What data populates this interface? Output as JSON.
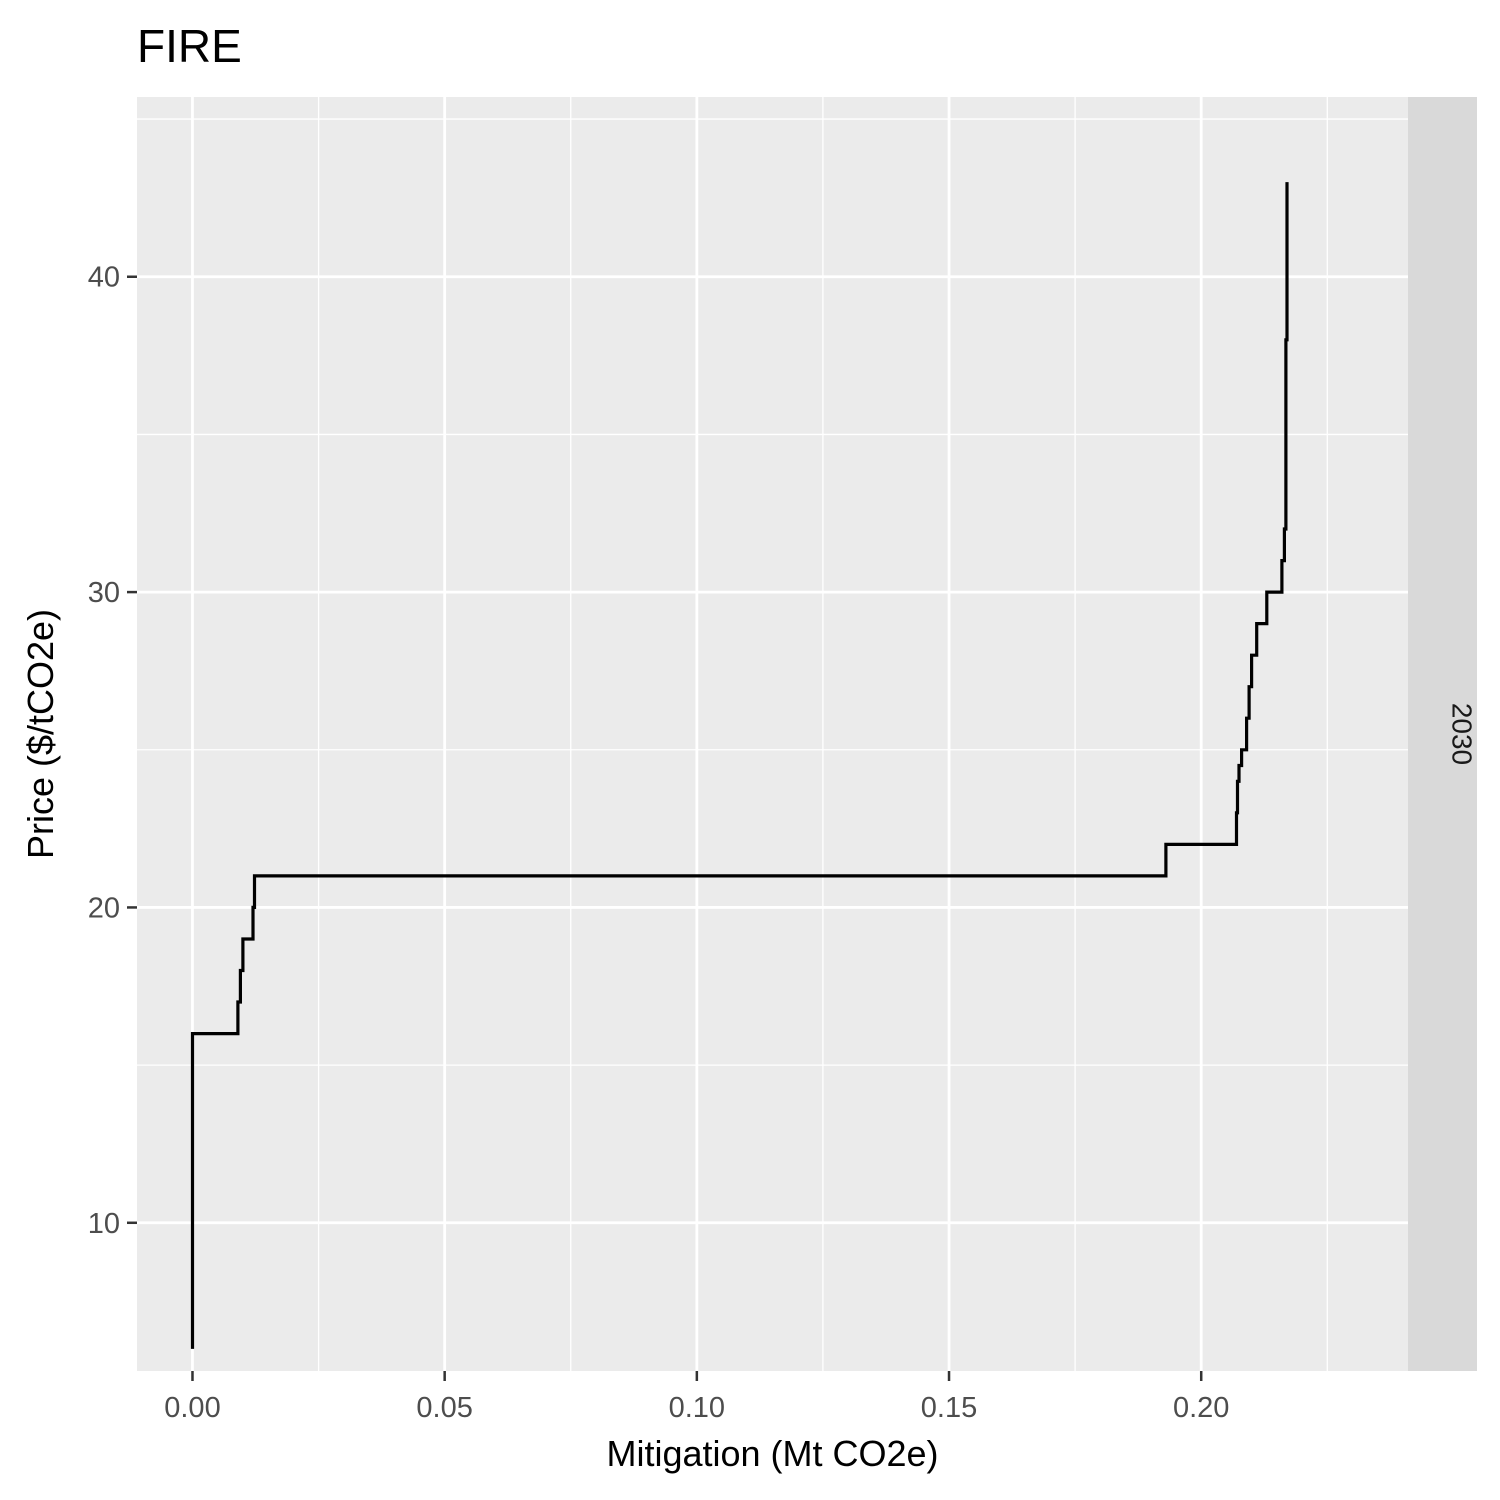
{
  "chart_data": {
    "type": "line",
    "title": "FIRE",
    "xlabel": "Mitigation (Mt CO2e)",
    "ylabel": "Price ($/tCO2e)",
    "facet_label": "2030",
    "xlim": [
      -0.011,
      0.241
    ],
    "ylim": [
      5.3,
      45.7
    ],
    "x_ticks": [
      0.0,
      0.05,
      0.1,
      0.15,
      0.2
    ],
    "x_tick_labels": [
      "0.00",
      "0.05",
      "0.10",
      "0.15",
      "0.20"
    ],
    "y_ticks": [
      10,
      20,
      30,
      40
    ],
    "y_tick_labels": [
      "10",
      "20",
      "30",
      "40"
    ],
    "grid": true,
    "colors": {
      "panel": "#ebebeb",
      "grid": "#ffffff",
      "strip": "#d9d9d9",
      "line": "#000000"
    },
    "series": [
      {
        "step": true,
        "x": [
          0.0,
          0.0,
          0.0,
          0.0,
          0.009,
          0.0095,
          0.01,
          0.012,
          0.0123,
          0.172,
          0.193,
          0.207,
          0.2072,
          0.2075,
          0.208,
          0.209,
          0.2095,
          0.21,
          0.211,
          0.213,
          0.216,
          0.2165,
          0.2168,
          0.217
        ],
        "y": [
          6,
          9,
          14,
          16,
          17,
          18,
          19,
          20,
          21,
          21,
          22,
          23,
          24,
          24.5,
          25,
          26,
          27,
          28,
          29,
          30,
          31,
          32,
          38,
          43
        ]
      }
    ]
  }
}
